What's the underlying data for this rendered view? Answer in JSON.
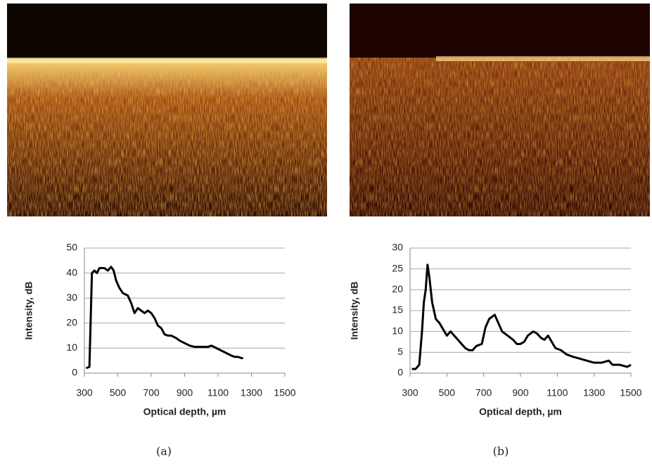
{
  "chart_data": [
    {
      "type": "line",
      "caption": "(a)",
      "xlabel": "Optical depth, µm",
      "ylabel": "Intensity, dB",
      "color": "#000000",
      "grid": true,
      "xlim": [
        300,
        1500
      ],
      "xticks": [
        300,
        500,
        700,
        900,
        1100,
        1300,
        1500
      ],
      "ylim": [
        0,
        50
      ],
      "yticks": [
        0,
        10,
        20,
        30,
        40,
        50
      ],
      "x": [
        310,
        330,
        345,
        360,
        375,
        390,
        420,
        440,
        460,
        475,
        490,
        510,
        530,
        560,
        580,
        600,
        620,
        640,
        660,
        680,
        700,
        720,
        740,
        760,
        780,
        800,
        820,
        850,
        870,
        900,
        930,
        960,
        1000,
        1040,
        1060,
        1090,
        1120,
        1150,
        1180,
        1200,
        1220,
        1240,
        1250
      ],
      "values": [
        2,
        2.5,
        40,
        41,
        40,
        42,
        42,
        41,
        42.5,
        41,
        37,
        34,
        32,
        31,
        28,
        24,
        26,
        25,
        24,
        25,
        24,
        22,
        19,
        18,
        15.5,
        15,
        15,
        14,
        13,
        12,
        11,
        10.5,
        10.5,
        10.5,
        11,
        10,
        9,
        8,
        7,
        6.5,
        6.5,
        6,
        6
      ]
    },
    {
      "type": "line",
      "caption": "(b)",
      "xlabel": "Optical depth, µm",
      "ylabel": "Intensity, dB",
      "color": "#000000",
      "grid": true,
      "xlim": [
        300,
        1500
      ],
      "xticks": [
        300,
        500,
        700,
        900,
        1100,
        1300,
        1500
      ],
      "ylim": [
        0,
        30
      ],
      "yticks": [
        0,
        5,
        10,
        15,
        20,
        25,
        30
      ],
      "x": [
        310,
        330,
        350,
        365,
        375,
        385,
        395,
        405,
        420,
        440,
        460,
        480,
        500,
        520,
        540,
        560,
        580,
        600,
        620,
        640,
        660,
        690,
        710,
        730,
        760,
        780,
        800,
        830,
        860,
        880,
        900,
        920,
        940,
        970,
        990,
        1010,
        1030,
        1050,
        1070,
        1090,
        1120,
        1150,
        1180,
        1220,
        1260,
        1300,
        1340,
        1380,
        1400,
        1440,
        1480,
        1500
      ],
      "values": [
        1,
        1,
        2,
        10,
        17,
        20,
        26,
        23,
        17,
        13,
        12,
        10.5,
        9,
        10,
        9,
        8,
        7,
        6,
        5.5,
        5.5,
        6.5,
        7,
        11,
        13,
        14,
        12,
        10,
        9,
        8,
        7,
        7,
        7.5,
        9,
        10,
        9.5,
        8.5,
        8,
        9,
        7.5,
        6,
        5.5,
        4.5,
        4,
        3.5,
        3,
        2.5,
        2.5,
        3,
        2,
        2,
        1.5,
        2
      ]
    }
  ]
}
